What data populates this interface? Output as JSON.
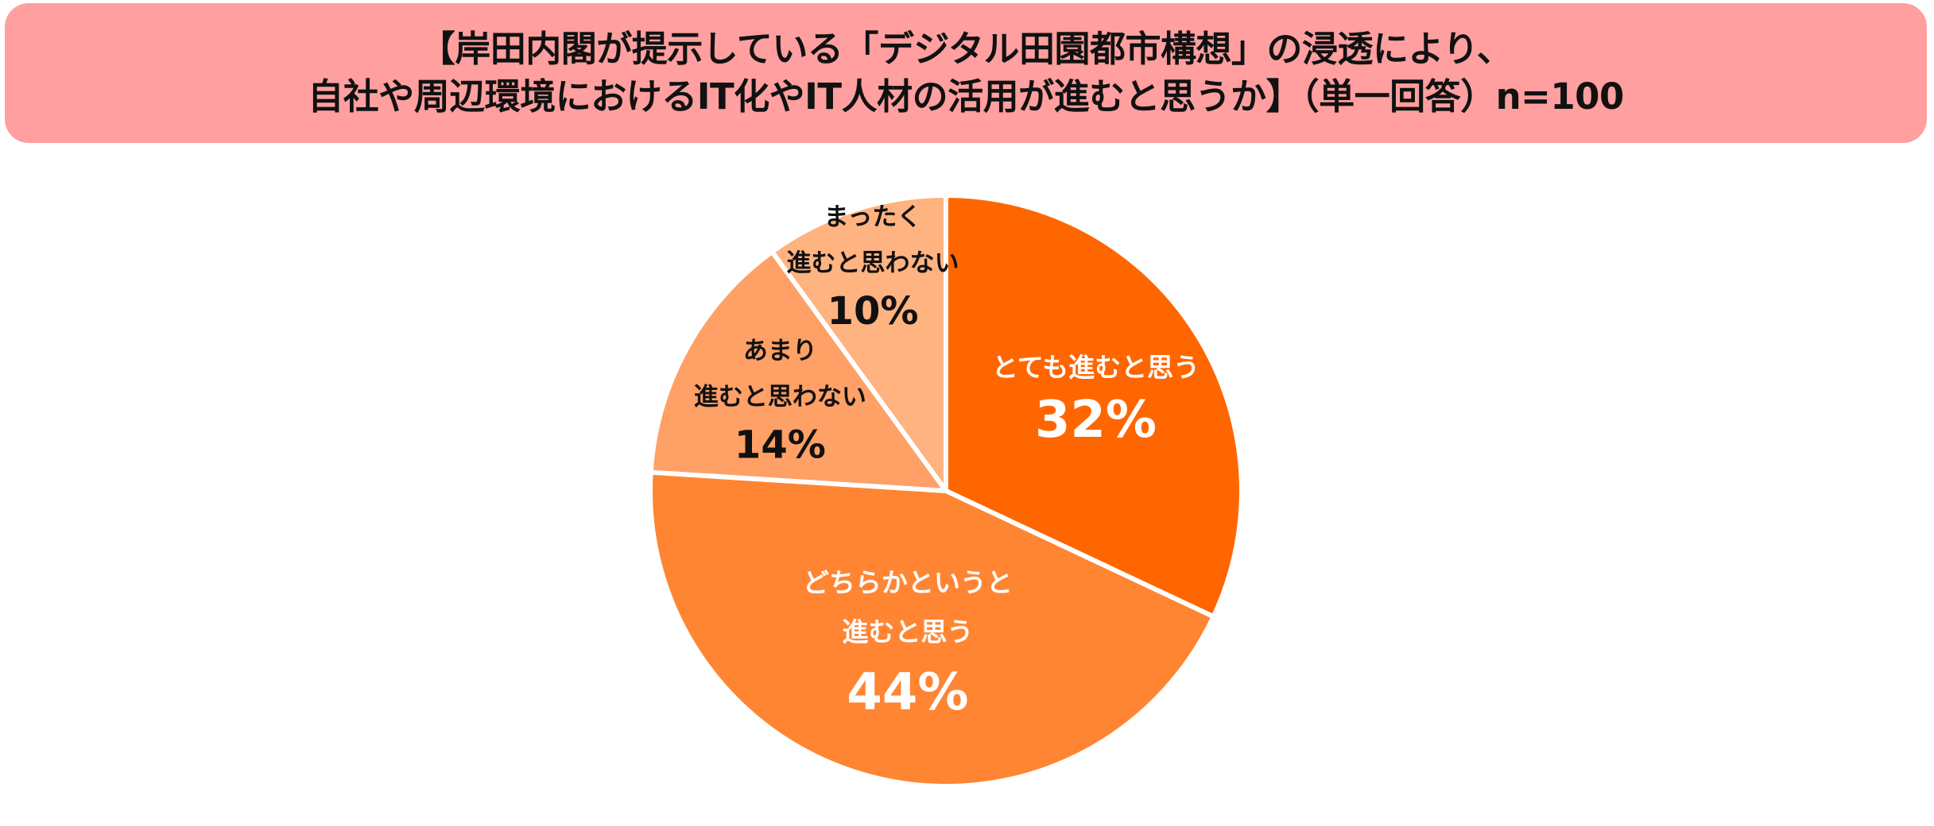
{
  "title": {
    "line1": "【岸田内閣が提示している「デジタル田園都市構想」の浸透により、",
    "line2": "自社や周辺環境におけるIT化やIT人材の活用が進むと思うか】（単一回答）n=100"
  },
  "chart_data": {
    "type": "pie",
    "start_angle_deg": 0,
    "direction": "clockwise",
    "slices": [
      {
        "label_lines": [
          "とても進むと思う"
        ],
        "value": 32,
        "value_label": "32%",
        "color": "#ff6600",
        "text_color": "#ffffff"
      },
      {
        "label_lines": [
          "どちらかというと",
          "進むと思う"
        ],
        "value": 44,
        "value_label": "44%",
        "color": "#ff8533",
        "text_color": "#ffffff"
      },
      {
        "label_lines": [
          "あまり",
          "進むと思わない"
        ],
        "value": 14,
        "value_label": "14%",
        "color": "#ffa066",
        "text_color": "#111111"
      },
      {
        "label_lines": [
          "まったく",
          "進むと思わない"
        ],
        "value": 10,
        "value_label": "10%",
        "color": "#ffb380",
        "text_color": "#111111"
      }
    ]
  }
}
